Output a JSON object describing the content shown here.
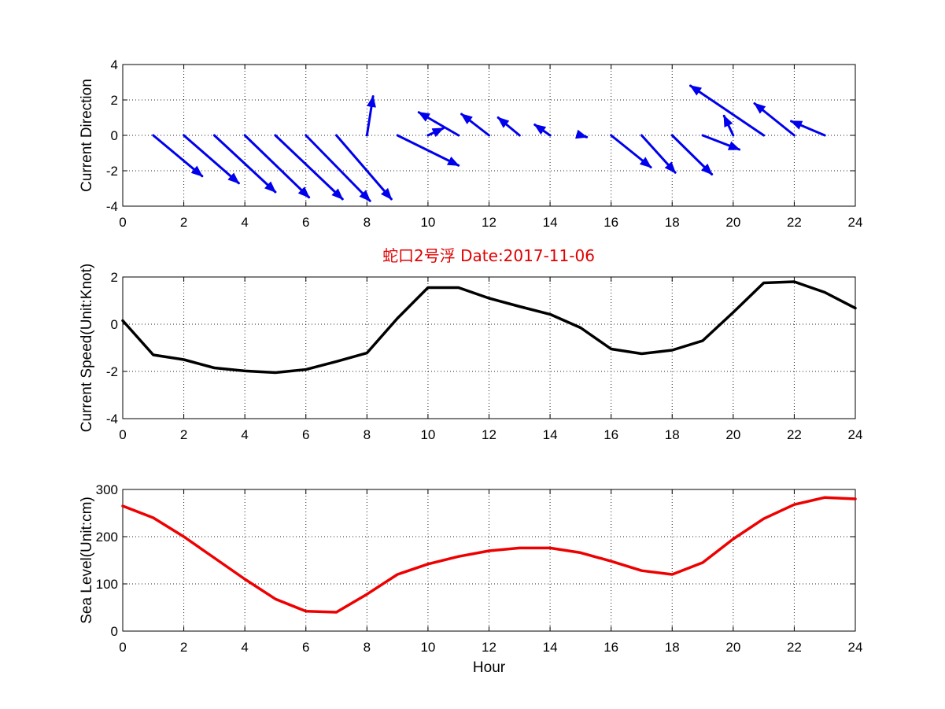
{
  "title": "蛇口2号浮   Date:2017-11-06",
  "colors": {
    "title": "#e00000",
    "direction": "#0000ee",
    "speed": "#000000",
    "level": "#ee0000"
  },
  "chart_data": [
    {
      "type": "quiver",
      "ylabel": "Current Direction",
      "xlabel": "",
      "xlim": [
        0,
        24
      ],
      "ylim": [
        -4,
        4
      ],
      "xticks": [
        0,
        2,
        4,
        6,
        8,
        10,
        12,
        14,
        16,
        18,
        20,
        22,
        24
      ],
      "yticks": [
        -4,
        -2,
        0,
        2,
        4
      ],
      "grid": true,
      "x": [
        1,
        2,
        3,
        4,
        5,
        6,
        7,
        8,
        9,
        10,
        11,
        12,
        13,
        14,
        15,
        16,
        17,
        18,
        19,
        20,
        21,
        22,
        23
      ],
      "u": [
        1.6,
        1.8,
        2.0,
        2.1,
        2.2,
        2.1,
        1.8,
        0.2,
        2.0,
        0.5,
        -1.3,
        -0.9,
        -0.7,
        -0.5,
        0.2,
        1.3,
        1.1,
        1.3,
        1.2,
        -0.3,
        -2.4,
        -1.3,
        -1.1
      ],
      "v": [
        -2.3,
        -2.7,
        -3.2,
        -3.5,
        -3.6,
        -3.7,
        -3.6,
        2.2,
        -1.7,
        0.4,
        1.3,
        1.2,
        1.0,
        0.6,
        -0.1,
        -1.8,
        -2.1,
        -2.2,
        -0.8,
        1.1,
        2.8,
        1.8,
        0.8
      ]
    },
    {
      "type": "line",
      "ylabel": "Current Speed(Unit:Knot)",
      "xlabel": "",
      "xlim": [
        0,
        24
      ],
      "ylim": [
        -4,
        2
      ],
      "xticks": [
        0,
        2,
        4,
        6,
        8,
        10,
        12,
        14,
        16,
        18,
        20,
        22,
        24
      ],
      "yticks": [
        -4,
        -2,
        0,
        2
      ],
      "grid": true,
      "x": [
        0,
        1,
        2,
        3,
        4,
        5,
        6,
        7,
        8,
        9,
        10,
        11,
        12,
        13,
        14,
        15,
        16,
        17,
        18,
        19,
        20,
        21,
        22,
        23,
        24
      ],
      "y": [
        0.15,
        -1.3,
        -1.5,
        -1.85,
        -1.98,
        -2.05,
        -1.92,
        -1.58,
        -1.22,
        0.25,
        1.55,
        1.55,
        1.1,
        0.75,
        0.42,
        -0.15,
        -1.05,
        -1.25,
        -1.1,
        -0.7,
        0.5,
        1.75,
        1.8,
        1.35,
        0.68
      ]
    },
    {
      "type": "line",
      "ylabel": "Sea Level(Unit:cm)",
      "xlabel": "Hour",
      "xlim": [
        0,
        24
      ],
      "ylim": [
        0,
        300
      ],
      "xticks": [
        0,
        2,
        4,
        6,
        8,
        10,
        12,
        14,
        16,
        18,
        20,
        22,
        24
      ],
      "yticks": [
        0,
        100,
        200,
        300
      ],
      "grid": true,
      "x": [
        0,
        1,
        2,
        3,
        4,
        5,
        6,
        7,
        8,
        9,
        10,
        11,
        12,
        13,
        14,
        15,
        16,
        17,
        18,
        19,
        20,
        21,
        22,
        23,
        24
      ],
      "y": [
        265,
        240,
        200,
        155,
        110,
        68,
        42,
        40,
        78,
        120,
        142,
        158,
        170,
        176,
        176,
        166,
        148,
        128,
        120,
        145,
        195,
        238,
        268,
        283,
        280
      ]
    }
  ]
}
